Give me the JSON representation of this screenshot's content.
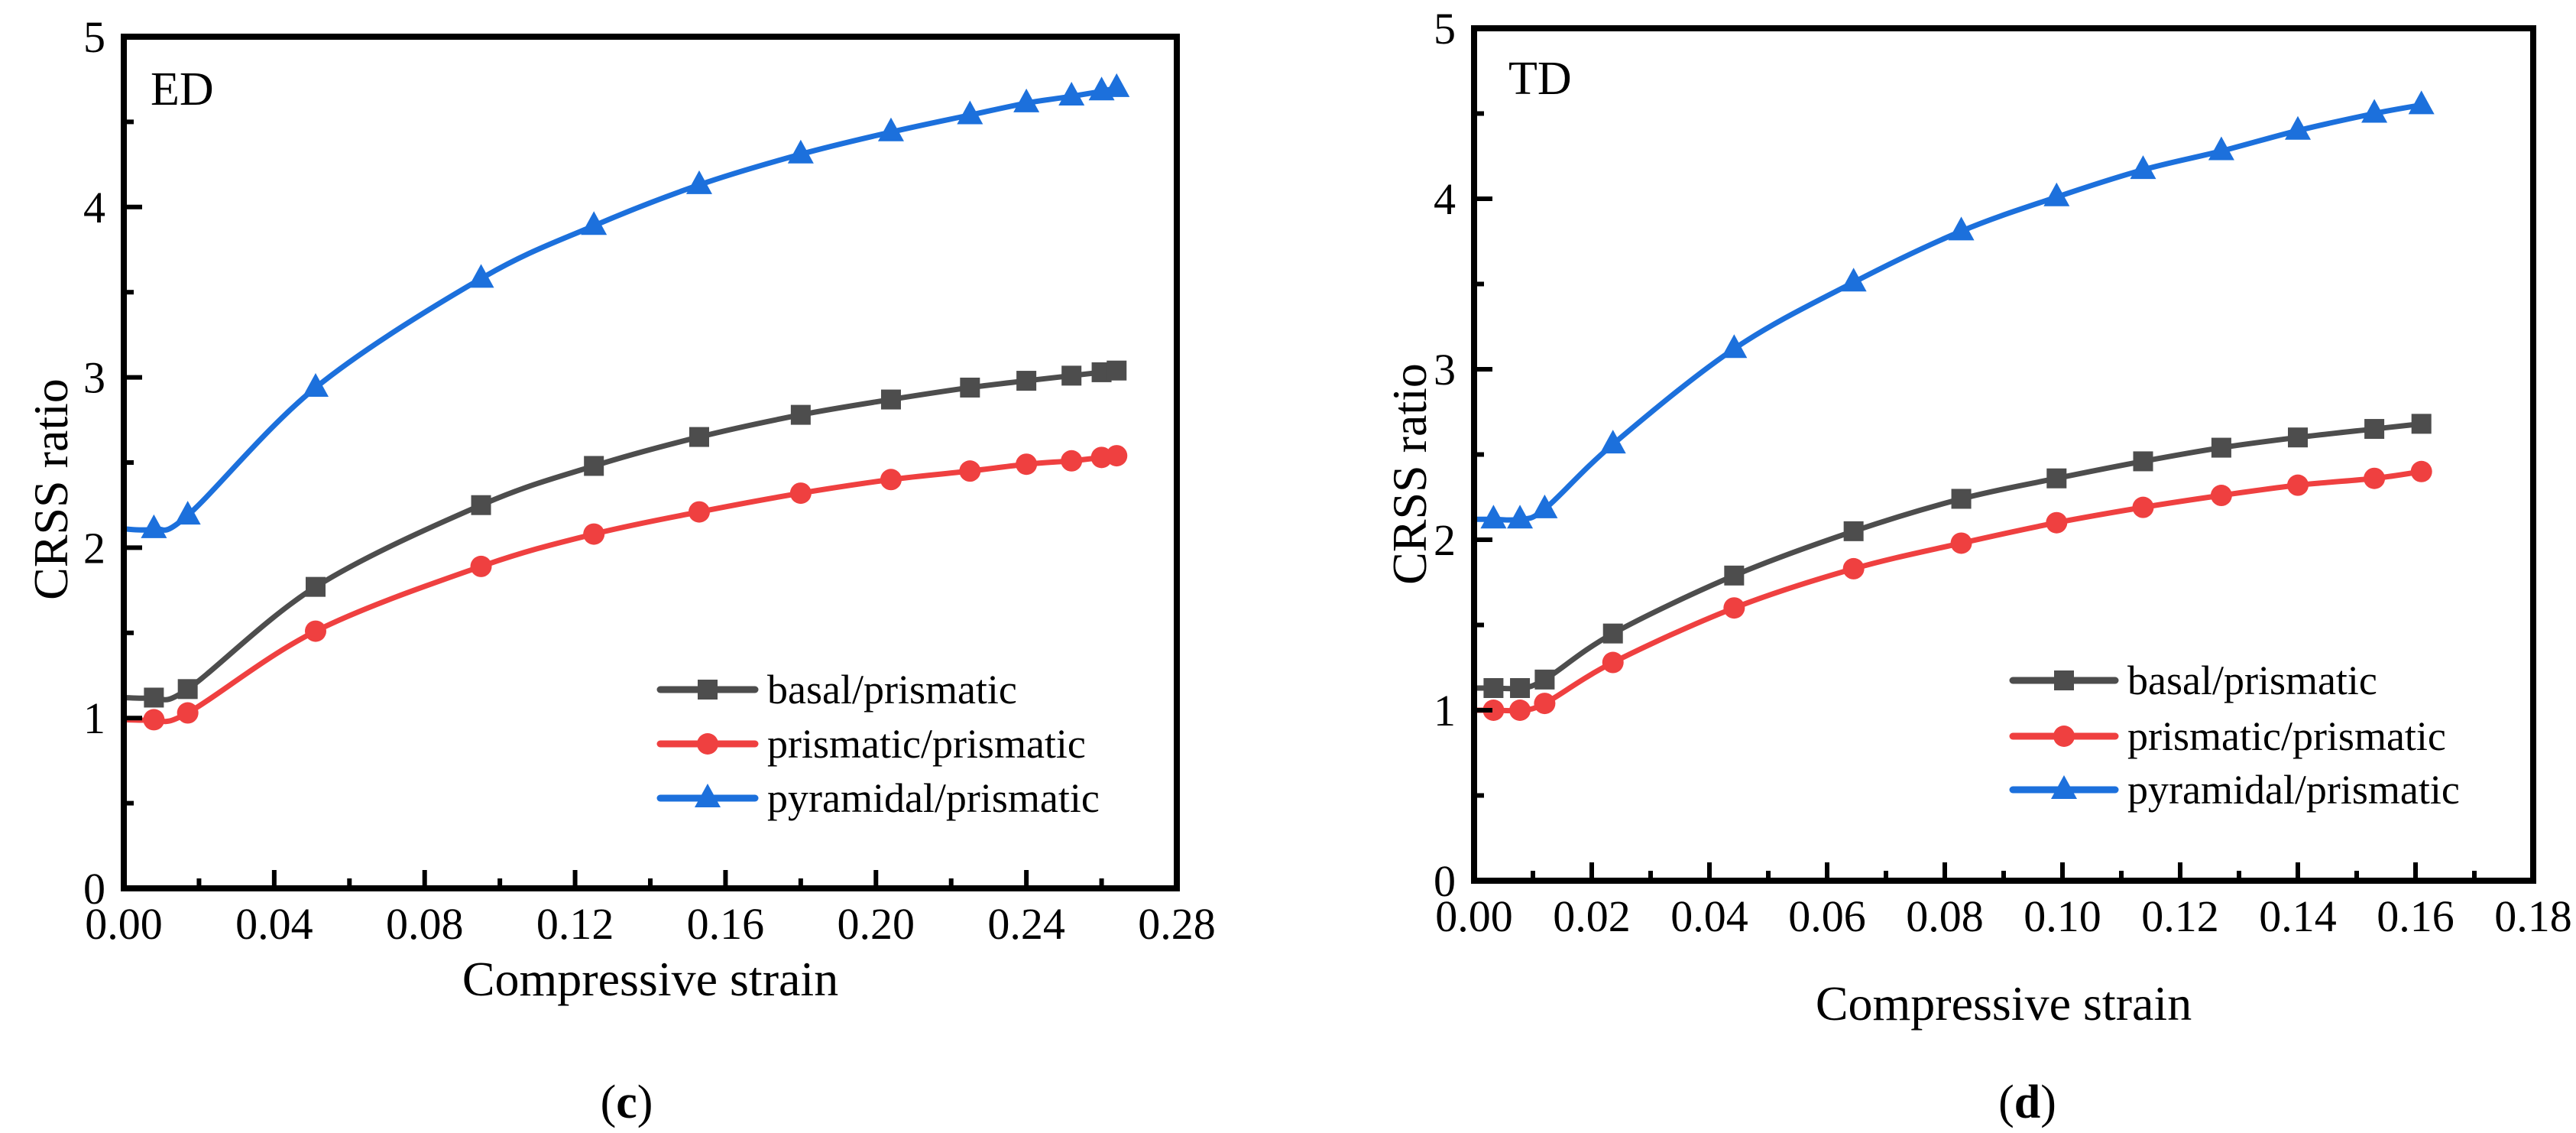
{
  "chart_data": [
    {
      "type": "line",
      "panel_label": "c",
      "annotation": "ED",
      "title": "",
      "xlabel": "Compressive strain",
      "ylabel": "CRSS ratio",
      "xlim": [
        0,
        0.28
      ],
      "ylim": [
        0,
        5
      ],
      "xtick_values": [
        0,
        0.04,
        0.08,
        0.12,
        0.16,
        0.2,
        0.24,
        0.28
      ],
      "xtick_labels": [
        "0.00",
        "0.04",
        "0.08",
        "0.12",
        "0.16",
        "0.20",
        "0.24",
        "0.28"
      ],
      "xminor_step": 0.02,
      "ytick_values": [
        0,
        1,
        2,
        3,
        4,
        5
      ],
      "ytick_labels": [
        "0",
        "1",
        "2",
        "3",
        "4",
        "5"
      ],
      "yminor_step": 0.5,
      "grid": false,
      "legend_position": "bottom-right",
      "series": [
        {
          "name": "basal/prismatic",
          "color": "#4d4d4d",
          "marker": "square",
          "x": [
            0.008,
            0.017,
            0.051,
            0.095,
            0.125,
            0.153,
            0.18,
            0.204,
            0.225,
            0.24,
            0.252,
            0.26,
            0.264
          ],
          "y": [
            1.12,
            1.17,
            1.77,
            2.25,
            2.48,
            2.65,
            2.78,
            2.87,
            2.94,
            2.98,
            3.01,
            3.03,
            3.04
          ]
        },
        {
          "name": "prismatic/prismatic",
          "color": "#ef4040",
          "marker": "circle",
          "x": [
            0.008,
            0.017,
            0.051,
            0.095,
            0.125,
            0.153,
            0.18,
            0.204,
            0.225,
            0.24,
            0.252,
            0.26,
            0.264
          ],
          "y": [
            0.99,
            1.03,
            1.51,
            1.89,
            2.08,
            2.21,
            2.32,
            2.4,
            2.45,
            2.49,
            2.51,
            2.53,
            2.54
          ]
        },
        {
          "name": "pyramidal/prismatic",
          "color": "#1c70dc",
          "marker": "triangle",
          "x": [
            0.008,
            0.017,
            0.051,
            0.095,
            0.125,
            0.153,
            0.18,
            0.204,
            0.225,
            0.24,
            0.252,
            0.26,
            0.264
          ],
          "y": [
            2.11,
            2.19,
            2.94,
            3.58,
            3.89,
            4.13,
            4.31,
            4.44,
            4.54,
            4.61,
            4.65,
            4.68,
            4.7
          ]
        }
      ]
    },
    {
      "type": "line",
      "panel_label": "d",
      "annotation": "TD",
      "title": "",
      "xlabel": "Compressive strain",
      "ylabel": "CRSS ratio",
      "xlim": [
        0,
        0.18
      ],
      "ylim": [
        0,
        5
      ],
      "xtick_values": [
        0,
        0.02,
        0.04,
        0.06,
        0.08,
        0.1,
        0.12,
        0.14,
        0.16,
        0.18
      ],
      "xtick_labels": [
        "0.00",
        "0.02",
        "0.04",
        "0.06",
        "0.08",
        "0.10",
        "0.12",
        "0.14",
        "0.16",
        "0.18"
      ],
      "xminor_step": 0.01,
      "ytick_values": [
        0,
        1,
        2,
        3,
        4,
        5
      ],
      "ytick_labels": [
        "0",
        "1",
        "2",
        "3",
        "4",
        "5"
      ],
      "yminor_step": 0.5,
      "grid": false,
      "legend_position": "bottom-right",
      "series": [
        {
          "name": "basal/prismatic",
          "color": "#4d4d4d",
          "marker": "square",
          "x": [
            0.0033,
            0.0078,
            0.012,
            0.0236,
            0.0442,
            0.0645,
            0.0828,
            0.099,
            0.1137,
            0.127,
            0.14,
            0.153,
            0.161
          ],
          "y": [
            1.13,
            1.13,
            1.18,
            1.45,
            1.79,
            2.05,
            2.24,
            2.36,
            2.46,
            2.54,
            2.6,
            2.65,
            2.68
          ]
        },
        {
          "name": "prismatic/prismatic",
          "color": "#ef4040",
          "marker": "circle",
          "x": [
            0.0033,
            0.0078,
            0.012,
            0.0236,
            0.0442,
            0.0645,
            0.0828,
            0.099,
            0.1137,
            0.127,
            0.14,
            0.153,
            0.161
          ],
          "y": [
            1.0,
            1.0,
            1.04,
            1.28,
            1.6,
            1.83,
            1.98,
            2.1,
            2.19,
            2.26,
            2.32,
            2.36,
            2.4
          ]
        },
        {
          "name": "pyramidal/prismatic",
          "color": "#1c70dc",
          "marker": "triangle",
          "x": [
            0.0033,
            0.0078,
            0.012,
            0.0236,
            0.0442,
            0.0645,
            0.0828,
            0.099,
            0.1137,
            0.127,
            0.14,
            0.153,
            0.161
          ],
          "y": [
            2.12,
            2.12,
            2.18,
            2.56,
            3.12,
            3.51,
            3.81,
            4.01,
            4.17,
            4.28,
            4.4,
            4.5,
            4.55
          ]
        }
      ]
    }
  ]
}
